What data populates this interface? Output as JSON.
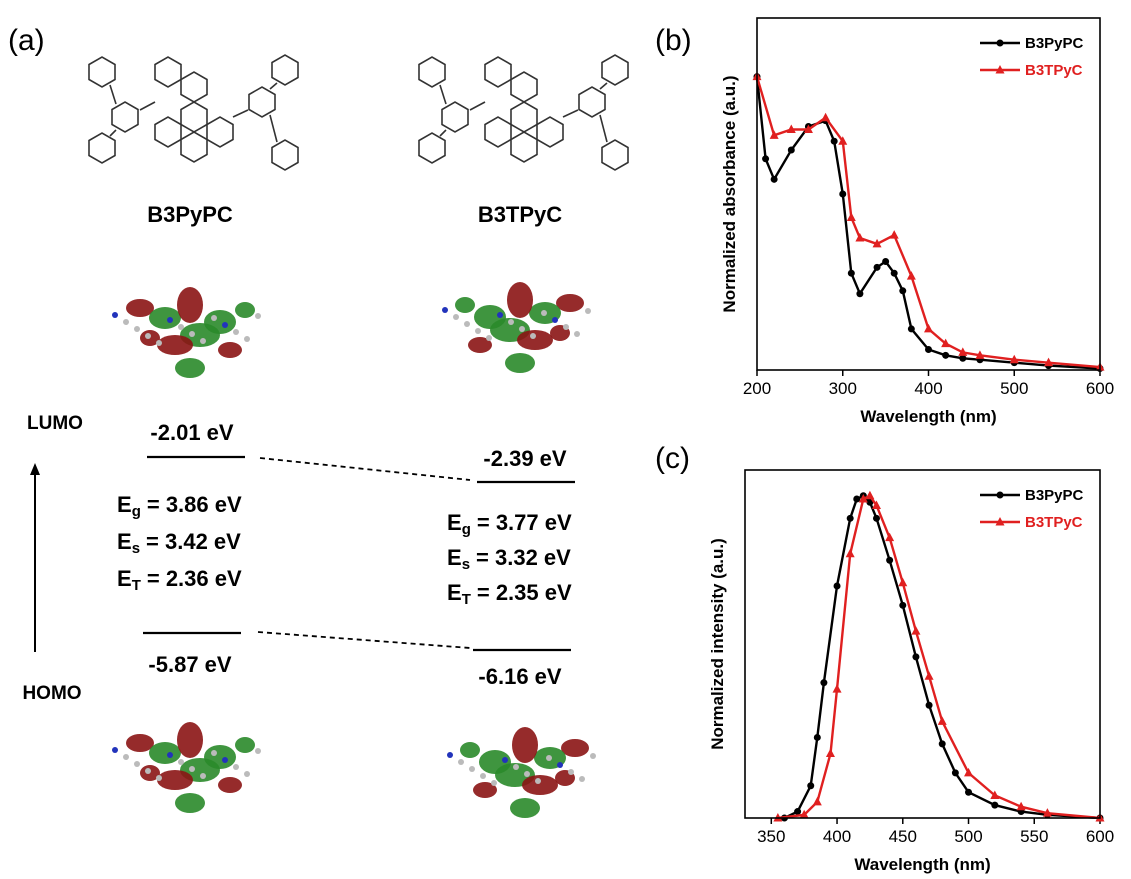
{
  "figure_a": {
    "label": "(a)",
    "lumo_label": "LUMO",
    "homo_label": "HOMO",
    "molecules": [
      {
        "name": "B3PyPC",
        "lumo": "-2.01 eV",
        "homo": "-5.87 eV",
        "energies": [
          {
            "symbol": "E",
            "sub": "g",
            "text": "= 3.86 eV"
          },
          {
            "symbol": "E",
            "sub": "s",
            "text": "= 3.42 eV"
          },
          {
            "symbol": "E",
            "sub": "T",
            "text": "= 2.36 eV"
          }
        ]
      },
      {
        "name": "B3TPyC",
        "lumo": "-2.39 eV",
        "homo": "-6.16 eV",
        "energies": [
          {
            "symbol": "E",
            "sub": "g",
            "text": "= 3.77 eV"
          },
          {
            "symbol": "E",
            "sub": "s",
            "text": "= 3.32 eV"
          },
          {
            "symbol": "E",
            "sub": "T",
            "text": "= 2.35 eV"
          }
        ]
      }
    ]
  },
  "chart_data": [
    {
      "type": "line",
      "panel_label": "(b)",
      "xlabel": "Wavelength (nm)",
      "ylabel": "Normalized absorbance (a.u.)",
      "xlim": [
        200,
        600
      ],
      "xticks": [
        200,
        300,
        400,
        500,
        600
      ],
      "ylim": [
        0,
        1.2
      ],
      "legend": "upper right",
      "series": [
        {
          "name": "B3PyPC",
          "color": "#000000",
          "marker": "circle",
          "x": [
            200,
            210,
            220,
            240,
            260,
            280,
            290,
            300,
            310,
            320,
            340,
            350,
            360,
            370,
            380,
            400,
            420,
            440,
            460,
            500,
            540,
            600
          ],
          "values": [
            1.0,
            0.72,
            0.65,
            0.75,
            0.83,
            0.85,
            0.78,
            0.6,
            0.33,
            0.26,
            0.35,
            0.37,
            0.33,
            0.27,
            0.14,
            0.07,
            0.05,
            0.04,
            0.035,
            0.025,
            0.015,
            0.005
          ]
        },
        {
          "name": "B3TPyC",
          "color": "#e02020",
          "marker": "triangle",
          "x": [
            200,
            220,
            240,
            260,
            280,
            300,
            310,
            320,
            340,
            360,
            380,
            400,
            420,
            440,
            460,
            500,
            540,
            600
          ],
          "values": [
            1.0,
            0.8,
            0.82,
            0.82,
            0.86,
            0.78,
            0.52,
            0.45,
            0.43,
            0.46,
            0.32,
            0.14,
            0.09,
            0.06,
            0.05,
            0.035,
            0.025,
            0.01
          ]
        }
      ]
    },
    {
      "type": "line",
      "panel_label": "(c)",
      "xlabel": "Wavelength (nm)",
      "ylabel": "Normalized intensity (a.u.)",
      "xlim": [
        330,
        600
      ],
      "xticks": [
        350,
        400,
        450,
        500,
        550,
        600
      ],
      "ylim": [
        0,
        1.08
      ],
      "legend": "upper right",
      "series": [
        {
          "name": "B3PyPC",
          "color": "#000000",
          "marker": "circle",
          "x": [
            360,
            370,
            380,
            385,
            390,
            400,
            410,
            415,
            420,
            425,
            430,
            440,
            450,
            460,
            470,
            480,
            490,
            500,
            520,
            540,
            560,
            600
          ],
          "values": [
            0,
            0.02,
            0.1,
            0.25,
            0.42,
            0.72,
            0.93,
            0.99,
            1.0,
            0.98,
            0.93,
            0.8,
            0.66,
            0.5,
            0.35,
            0.23,
            0.14,
            0.08,
            0.04,
            0.02,
            0.01,
            0
          ]
        },
        {
          "name": "B3TPyC",
          "color": "#e02020",
          "marker": "triangle",
          "x": [
            355,
            375,
            385,
            395,
            400,
            410,
            420,
            425,
            430,
            440,
            450,
            460,
            470,
            480,
            500,
            520,
            540,
            560,
            600
          ],
          "values": [
            0,
            0.01,
            0.05,
            0.2,
            0.4,
            0.82,
            0.99,
            1.0,
            0.97,
            0.87,
            0.73,
            0.58,
            0.44,
            0.3,
            0.14,
            0.07,
            0.035,
            0.015,
            0
          ]
        }
      ]
    }
  ]
}
